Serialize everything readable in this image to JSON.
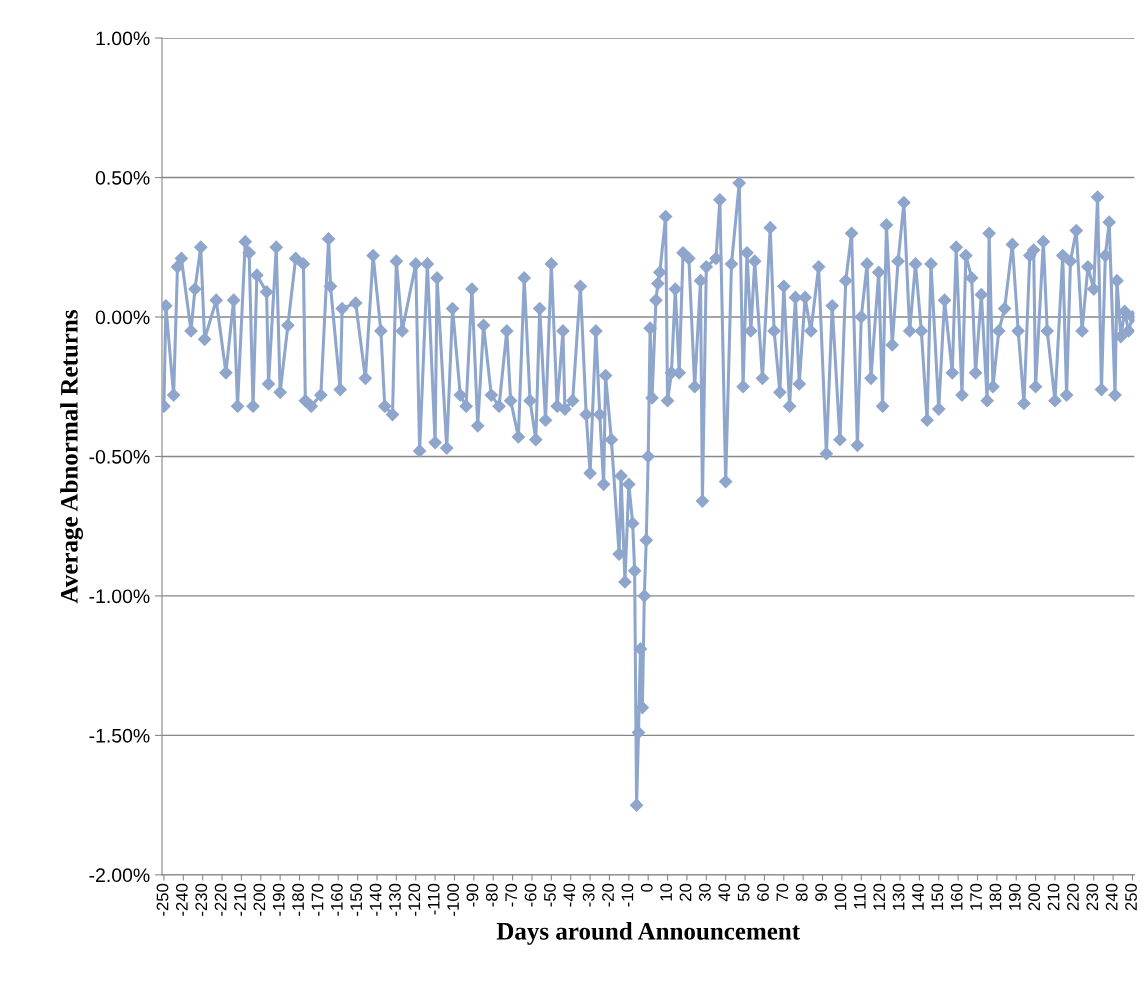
{
  "chart_data": {
    "type": "line",
    "xlabel": "Days around Announcement",
    "ylabel": "Average Abnormal Returns",
    "xlim": [
      -251,
      251
    ],
    "xticks": [
      -250,
      -240,
      -230,
      -220,
      -210,
      -200,
      -190,
      -180,
      -170,
      -160,
      -150,
      -140,
      -130,
      -120,
      -110,
      -100,
      -90,
      -80,
      -70,
      -60,
      -50,
      -40,
      -30,
      -20,
      -10,
      0,
      10,
      20,
      30,
      40,
      50,
      60,
      70,
      80,
      90,
      100,
      110,
      120,
      130,
      140,
      150,
      160,
      170,
      180,
      190,
      200,
      210,
      220,
      230,
      240,
      250
    ],
    "ylim": [
      -2.0,
      1.0
    ],
    "yticks": [
      {
        "value": -2.0,
        "label": "-2.00%"
      },
      {
        "value": -1.5,
        "label": "-1.50%"
      },
      {
        "value": -1.0,
        "label": "-1.00%"
      },
      {
        "value": -0.5,
        "label": "-0.50%"
      },
      {
        "value": 0.0,
        "label": "0.00%"
      },
      {
        "value": 0.5,
        "label": "0.50%"
      },
      {
        "value": 1.0,
        "label": "1.00%"
      }
    ],
    "grid": "y",
    "legend": false,
    "marker": "diamond",
    "line_style": "solid",
    "series": [
      {
        "color": "#8ea5cc",
        "x": [
          -250,
          -249,
          -245,
          -243,
          -241,
          -236,
          -234,
          -231,
          -229,
          -223,
          -218,
          -214,
          -212,
          -208,
          -206,
          -204,
          -202,
          -197,
          -196,
          -192,
          -190,
          -186,
          -182,
          -178,
          -177,
          -174,
          -169,
          -165,
          -164,
          -159,
          -158,
          -151,
          -146,
          -142,
          -138,
          -136,
          -132,
          -130,
          -127,
          -120,
          -118,
          -114,
          -110,
          -109,
          -104,
          -101,
          -97,
          -94,
          -91,
          -88,
          -85,
          -81,
          -77,
          -73,
          -71,
          -67,
          -64,
          -61,
          -58,
          -56,
          -53,
          -50,
          -47,
          -44,
          -43,
          -39,
          -35,
          -32,
          -30,
          -27,
          -25,
          -23,
          -22,
          -19,
          -15,
          -14,
          -12,
          -10,
          -8,
          -7,
          -6,
          -5,
          -4,
          -3,
          -2,
          -1,
          0,
          1,
          2,
          4,
          5,
          6,
          9,
          10,
          12,
          14,
          16,
          18,
          21,
          24,
          27,
          28,
          30,
          35,
          37,
          40,
          43,
          47,
          49,
          51,
          53,
          55,
          59,
          63,
          65,
          68,
          70,
          73,
          76,
          78,
          81,
          84,
          88,
          92,
          95,
          99,
          102,
          105,
          108,
          110,
          113,
          115,
          119,
          121,
          123,
          126,
          129,
          132,
          135,
          138,
          141,
          144,
          146,
          150,
          153,
          157,
          159,
          162,
          164,
          167,
          169,
          172,
          175,
          176,
          178,
          181,
          184,
          188,
          191,
          194,
          197,
          199,
          200,
          204,
          206,
          210,
          214,
          216,
          218,
          221,
          224,
          227,
          230,
          232,
          234,
          236,
          238,
          241,
          242,
          244,
          246,
          248,
          250
        ],
        "values": [
          -0.32,
          0.04,
          -0.28,
          0.18,
          0.21,
          -0.05,
          0.1,
          0.25,
          -0.08,
          0.06,
          -0.2,
          0.06,
          -0.32,
          0.27,
          0.23,
          -0.32,
          0.15,
          0.09,
          -0.24,
          0.25,
          -0.27,
          -0.03,
          0.21,
          0.19,
          -0.3,
          -0.32,
          -0.28,
          0.28,
          0.11,
          -0.26,
          0.03,
          0.05,
          -0.22,
          0.22,
          -0.05,
          -0.32,
          -0.35,
          0.2,
          -0.05,
          0.19,
          -0.48,
          0.19,
          -0.45,
          0.14,
          -0.47,
          0.03,
          -0.28,
          -0.32,
          0.1,
          -0.39,
          -0.03,
          -0.28,
          -0.32,
          -0.05,
          -0.3,
          -0.43,
          0.14,
          -0.3,
          -0.44,
          0.03,
          -0.37,
          0.19,
          -0.32,
          -0.05,
          -0.33,
          -0.3,
          0.11,
          -0.35,
          -0.56,
          -0.05,
          -0.35,
          -0.6,
          -0.21,
          -0.44,
          -0.85,
          -0.57,
          -0.95,
          -0.6,
          -0.74,
          -0.91,
          -1.75,
          -1.49,
          -1.19,
          -1.4,
          -1.0,
          -0.8,
          -0.5,
          -0.04,
          -0.29,
          0.06,
          0.12,
          0.16,
          0.36,
          -0.3,
          -0.2,
          0.1,
          -0.2,
          0.23,
          0.21,
          -0.25,
          0.13,
          -0.66,
          0.18,
          0.21,
          0.42,
          -0.59,
          0.19,
          0.48,
          -0.25,
          0.23,
          -0.05,
          0.2,
          -0.22,
          0.32,
          -0.05,
          -0.27,
          0.11,
          -0.32,
          0.07,
          -0.24,
          0.07,
          -0.05,
          0.18,
          -0.49,
          0.04,
          -0.44,
          0.13,
          0.3,
          -0.46,
          0.0,
          0.19,
          -0.22,
          0.16,
          -0.32,
          0.33,
          -0.1,
          0.2,
          0.41,
          -0.05,
          0.19,
          -0.05,
          -0.37,
          0.19,
          -0.33,
          0.06,
          -0.2,
          0.25,
          -0.28,
          0.22,
          0.14,
          -0.2,
          0.08,
          -0.3,
          0.3,
          -0.25,
          -0.05,
          0.03,
          0.26,
          -0.05,
          -0.31,
          0.22,
          0.24,
          -0.25,
          0.27,
          -0.05,
          -0.3,
          0.22,
          -0.28,
          0.2,
          0.31,
          -0.05,
          0.18,
          0.1,
          0.43,
          -0.26,
          0.22,
          0.34,
          -0.28,
          0.13,
          -0.07,
          0.02,
          -0.05,
          0.0
        ]
      }
    ]
  }
}
